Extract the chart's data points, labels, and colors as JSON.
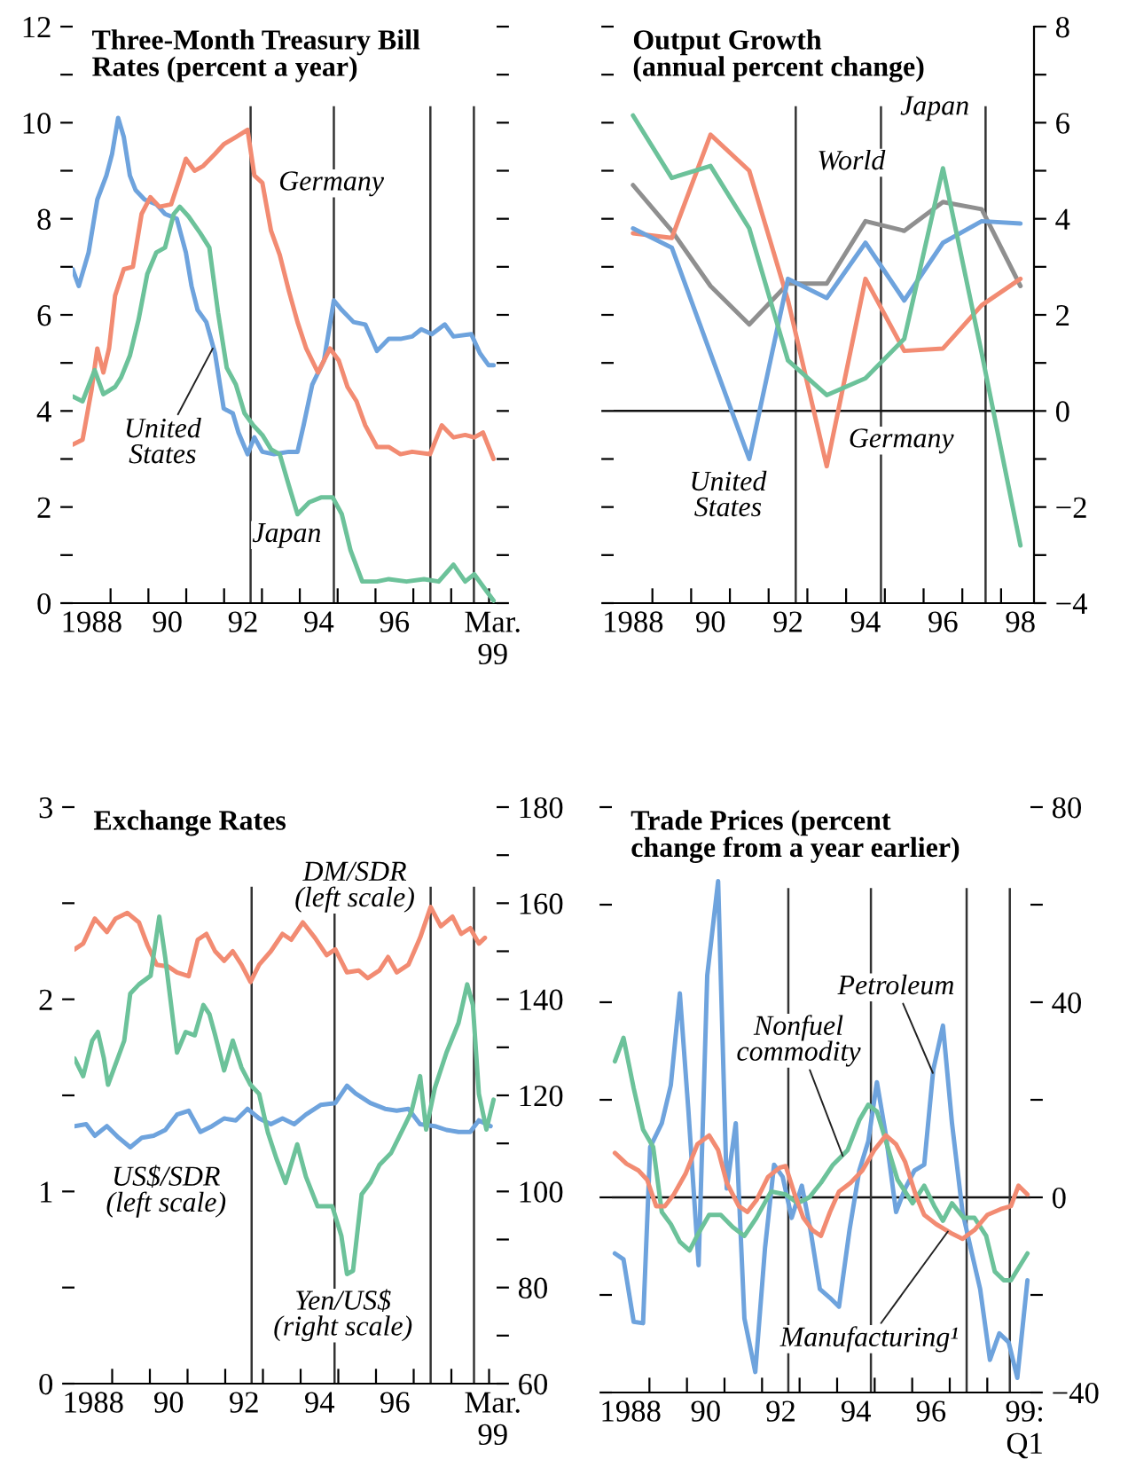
{
  "chart_data": [
    {
      "type": "line",
      "title": "Three-Month Treasury Bill\nRates (percent a year)",
      "xlim": [
        1987.5,
        1998.7
      ],
      "xticks": [
        1988,
        {
          "value": 1988.5,
          "label": null
        },
        {
          "value": 1989.5,
          "label": null
        },
        {
          "value": 1990,
          "label": "90"
        },
        {
          "value": 1990.5,
          "label": null
        },
        {
          "value": 1991.5,
          "label": null
        },
        {
          "value": 1992,
          "label": "92"
        },
        {
          "value": 1992.5,
          "label": null
        },
        {
          "value": 1993.5,
          "label": null
        },
        {
          "value": 1994,
          "label": "94"
        },
        {
          "value": 1994.5,
          "label": null
        },
        {
          "value": 1995.5,
          "label": null
        },
        {
          "value": 1996,
          "label": "96"
        },
        {
          "value": 1996.5,
          "label": null
        },
        {
          "value": 1997.5,
          "label": null
        },
        {
          "value": 1998.5,
          "label": null
        },
        {
          "value": 1998.6,
          "label": "Mar.\n99"
        }
      ],
      "ylim": [
        0,
        12
      ],
      "yticks": [
        0,
        {
          "value": 1,
          "label": null
        },
        2,
        {
          "value": 3,
          "label": null
        },
        4,
        {
          "value": 5,
          "label": null
        },
        6,
        {
          "value": 7,
          "label": null
        },
        8,
        {
          "value": 9,
          "label": null
        },
        10,
        {
          "value": 11,
          "label": null
        },
        12
      ],
      "series": [
        {
          "color": "#6ea3dd",
          "x": [
            1987.5,
            1987.66,
            1987.92,
            1988.15,
            1988.39,
            1988.54,
            1988.7,
            1988.85,
            1989.01,
            1989.16,
            1989.4,
            1989.71,
            1989.94,
            1990.25,
            1990.49,
            1990.64,
            1990.8,
            1991.03,
            1991.26,
            1991.49,
            1991.73,
            1991.88,
            1992.12,
            1992.3,
            1992.51,
            1992.82,
            1993.21,
            1993.44,
            1993.6,
            1993.83,
            1994.14,
            1994.4,
            1994.61,
            1994.92,
            1995.23,
            1995.54,
            1995.85,
            1996.16,
            1996.47,
            1996.71,
            1996.99,
            1997.33,
            1997.56,
            1998.03,
            1998.26,
            1998.49,
            1998.62
          ],
          "values": [
            6.95,
            6.6,
            7.3,
            8.4,
            8.9,
            9.35,
            10.1,
            9.7,
            8.9,
            8.6,
            8.4,
            8.3,
            8.1,
            8.0,
            7.3,
            6.6,
            6.1,
            5.85,
            5.2,
            4.05,
            3.95,
            3.55,
            3.1,
            3.45,
            3.15,
            3.1,
            3.15,
            3.15,
            3.7,
            4.55,
            5.05,
            6.3,
            6.1,
            5.85,
            5.8,
            5.25,
            5.5,
            5.5,
            5.55,
            5.7,
            5.6,
            5.8,
            5.55,
            5.6,
            5.2,
            4.95,
            4.95
          ]
        },
        {
          "color": "#f28b72",
          "x": [
            1987.5,
            1987.76,
            1988.0,
            1988.15,
            1988.31,
            1988.46,
            1988.62,
            1988.85,
            1989.09,
            1989.32,
            1989.55,
            1989.79,
            1990.1,
            1990.33,
            1990.49,
            1990.72,
            1990.95,
            1991.26,
            1991.49,
            1991.81,
            1992.12,
            1992.3,
            1992.51,
            1992.74,
            1992.97,
            1993.21,
            1993.44,
            1993.67,
            1993.98,
            1994.3,
            1994.53,
            1994.76,
            1995.0,
            1995.23,
            1995.54,
            1995.85,
            1996.16,
            1996.47,
            1996.94,
            1997.25,
            1997.56,
            1997.87,
            1998.11,
            1998.34,
            1998.62
          ],
          "values": [
            3.3,
            3.4,
            4.45,
            5.3,
            4.8,
            5.3,
            6.4,
            6.95,
            7.0,
            8.1,
            8.45,
            8.25,
            8.3,
            8.85,
            9.25,
            9.0,
            9.1,
            9.35,
            9.55,
            9.7,
            9.85,
            8.9,
            8.75,
            7.75,
            7.25,
            6.5,
            5.85,
            5.3,
            4.8,
            5.3,
            5.05,
            4.5,
            4.2,
            3.7,
            3.25,
            3.25,
            3.1,
            3.15,
            3.1,
            3.7,
            3.45,
            3.5,
            3.45,
            3.55,
            3.0
          ]
        },
        {
          "color": "#6cc29a",
          "x": [
            1987.5,
            1987.76,
            1988.08,
            1988.31,
            1988.62,
            1988.78,
            1989.01,
            1989.24,
            1989.47,
            1989.71,
            1989.94,
            1990.17,
            1990.33,
            1990.56,
            1990.87,
            1991.11,
            1991.34,
            1991.57,
            1991.81,
            1992.04,
            1992.27,
            1992.51,
            1992.74,
            1992.97,
            1993.21,
            1993.44,
            1993.75,
            1994.06,
            1994.37,
            1994.61,
            1994.84,
            1995.15,
            1995.54,
            1995.85,
            1996.32,
            1996.78,
            1997.17,
            1997.56,
            1997.87,
            1998.11,
            1998.34,
            1998.62
          ],
          "values": [
            4.3,
            4.2,
            4.85,
            4.35,
            4.5,
            4.7,
            5.15,
            5.9,
            6.85,
            7.3,
            7.4,
            8.1,
            8.25,
            8.05,
            7.7,
            7.4,
            6.05,
            4.9,
            4.55,
            3.95,
            3.7,
            3.5,
            3.2,
            3.1,
            2.45,
            1.85,
            2.1,
            2.2,
            2.2,
            1.85,
            1.1,
            0.45,
            0.45,
            0.5,
            0.45,
            0.5,
            0.45,
            0.8,
            0.45,
            0.6,
            0.35,
            0.05
          ]
        }
      ],
      "ref_lines": [
        {
          "axis": "x",
          "value": 1992.2
        },
        {
          "axis": "x",
          "value": 1994.4
        },
        {
          "axis": "x",
          "value": 1996.95
        },
        {
          "axis": "x",
          "value": 1998.1
        }
      ],
      "annotations": [
        "Germany",
        "Japan",
        {
          "text": "United\nStates",
          "x": 1991.2,
          "y": 5.3
        }
      ]
    },
    {
      "type": "line",
      "title": "Output Growth\n(annual percent change)",
      "xlim": [
        1987.5,
        1998.35
      ],
      "xticks": [
        1988,
        {
          "value": 1988.5,
          "label": null
        },
        {
          "value": 1989.5,
          "label": null
        },
        {
          "value": 1990,
          "label": "90"
        },
        {
          "value": 1990.5,
          "label": null
        },
        {
          "value": 1991.5,
          "label": null
        },
        {
          "value": 1992,
          "label": "92"
        },
        {
          "value": 1992.5,
          "label": null
        },
        {
          "value": 1993.5,
          "label": null
        },
        {
          "value": 1994,
          "label": "94"
        },
        {
          "value": 1994.5,
          "label": null
        },
        {
          "value": 1995.5,
          "label": null
        },
        {
          "value": 1996,
          "label": "96"
        },
        {
          "value": 1996.5,
          "label": null
        },
        {
          "value": 1997.5,
          "label": null
        },
        {
          "value": 1998,
          "label": "98"
        }
      ],
      "y2lim": [
        -4,
        8
      ],
      "y2ticks": [
        {
          "value": -4,
          "label": "−4"
        },
        {
          "value": -3,
          "label": null
        },
        {
          "value": -2,
          "label": "−2"
        },
        {
          "value": -1,
          "label": null
        },
        0,
        {
          "value": 1,
          "label": null
        },
        2,
        {
          "value": 3,
          "label": null
        },
        4,
        {
          "value": 5,
          "label": null
        },
        6,
        {
          "value": 7,
          "label": null
        },
        8
      ],
      "series": [
        {
          "axis": "y2",
          "color": "#8f8f8f",
          "x": [
            1988,
            1989,
            1990,
            1991,
            1992,
            1993,
            1994,
            1995,
            1996,
            1997,
            1998
          ],
          "values": [
            4.7,
            3.75,
            2.6,
            1.8,
            2.65,
            2.65,
            3.95,
            3.75,
            4.35,
            4.2,
            2.6
          ]
        },
        {
          "axis": "y2",
          "color": "#f28b72",
          "x": [
            1988,
            1989,
            1990,
            1991,
            1992,
            1993,
            1994,
            1995,
            1996,
            1997,
            1998
          ],
          "values": [
            3.7,
            3.6,
            5.75,
            5.0,
            2.3,
            -1.15,
            2.75,
            1.25,
            1.3,
            2.2,
            2.75
          ]
        },
        {
          "axis": "y2",
          "color": "#6ea3dd",
          "x": [
            1988,
            1989,
            1990,
            1991,
            1992,
            1993,
            1994,
            1995,
            1996,
            1997,
            1998
          ],
          "values": [
            3.8,
            3.4,
            1.2,
            -1.0,
            2.75,
            2.35,
            3.5,
            2.3,
            3.5,
            3.95,
            3.9
          ]
        },
        {
          "axis": "y2",
          "color": "#6cc29a",
          "x": [
            1988,
            1989,
            1990,
            1991,
            1992,
            1993,
            1994,
            1995,
            1996,
            1997,
            1998
          ],
          "values": [
            6.15,
            4.85,
            5.1,
            3.8,
            1.05,
            0.33,
            0.68,
            1.5,
            5.05,
            1.2,
            -2.8
          ]
        }
      ],
      "ref_lines": [
        {
          "axis": "y2",
          "value": 0
        },
        {
          "axis": "x",
          "value": 1992.2
        },
        {
          "axis": "x",
          "value": 1994.4
        },
        {
          "axis": "x",
          "value": 1997.1
        }
      ],
      "annotations": [
        "Japan",
        "World",
        "Germany",
        "United\nStates"
      ]
    },
    {
      "type": "line",
      "title": "Exchange Rates",
      "xlim": [
        1987.5,
        1998.7
      ],
      "xticks": [
        1988,
        {
          "value": 1988.5,
          "label": null
        },
        {
          "value": 1989.5,
          "label": null
        },
        {
          "value": 1990,
          "label": "90"
        },
        {
          "value": 1990.5,
          "label": null
        },
        {
          "value": 1991.5,
          "label": null
        },
        {
          "value": 1992,
          "label": "92"
        },
        {
          "value": 1992.5,
          "label": null
        },
        {
          "value": 1993.5,
          "label": null
        },
        {
          "value": 1994,
          "label": "94"
        },
        {
          "value": 1994.5,
          "label": null
        },
        {
          "value": 1995.5,
          "label": null
        },
        {
          "value": 1996,
          "label": "96"
        },
        {
          "value": 1996.5,
          "label": null
        },
        {
          "value": 1997.5,
          "label": null
        },
        {
          "value": 1998.5,
          "label": null
        },
        {
          "value": 1998.6,
          "label": "Mar.\n99"
        }
      ],
      "ylim": [
        0,
        3
      ],
      "yticks": [
        0,
        {
          "value": 0.5,
          "label": null
        },
        1,
        {
          "value": 1.5,
          "label": null
        },
        2,
        {
          "value": 2.5,
          "label": null
        },
        3
      ],
      "y2lim": [
        60,
        180
      ],
      "y2ticks": [
        60,
        {
          "value": 70,
          "label": null
        },
        80,
        {
          "value": 90,
          "label": null
        },
        100,
        {
          "value": 110,
          "label": null
        },
        120,
        {
          "value": 130,
          "label": null
        },
        140,
        {
          "value": 150,
          "label": null
        },
        160,
        {
          "value": 170,
          "label": null
        },
        180
      ],
      "series": [
        {
          "color": "#f28b72",
          "x": [
            1987.5,
            1987.73,
            1988.04,
            1988.36,
            1988.59,
            1988.9,
            1989.21,
            1989.44,
            1989.68,
            1989.99,
            1990.22,
            1990.53,
            1990.77,
            1991.0,
            1991.23,
            1991.47,
            1991.7,
            1991.93,
            1992.17,
            1992.4,
            1992.71,
            1993.02,
            1993.25,
            1993.56,
            1993.88,
            1994.19,
            1994.42,
            1994.73,
            1995.04,
            1995.28,
            1995.59,
            1995.82,
            1996.05,
            1996.36,
            1996.67,
            1996.95,
            1997.22,
            1997.53,
            1997.76,
            1998.0,
            1998.23,
            1998.39
          ],
          "values": [
            2.26,
            2.29,
            2.42,
            2.35,
            2.42,
            2.45,
            2.4,
            2.28,
            2.18,
            2.17,
            2.14,
            2.12,
            2.31,
            2.34,
            2.25,
            2.2,
            2.25,
            2.18,
            2.09,
            2.18,
            2.25,
            2.34,
            2.31,
            2.4,
            2.32,
            2.23,
            2.26,
            2.14,
            2.15,
            2.11,
            2.15,
            2.22,
            2.14,
            2.18,
            2.32,
            2.48,
            2.38,
            2.43,
            2.34,
            2.37,
            2.29,
            2.32
          ]
        },
        {
          "color": "#6ea3dd",
          "x": [
            1987.5,
            1987.81,
            1988.04,
            1988.36,
            1988.67,
            1988.98,
            1989.29,
            1989.6,
            1989.91,
            1990.22,
            1990.53,
            1990.84,
            1991.15,
            1991.47,
            1991.78,
            1992.09,
            1992.4,
            1992.71,
            1993.02,
            1993.33,
            1993.64,
            1994.03,
            1994.42,
            1994.73,
            1994.96,
            1995.35,
            1995.74,
            1996.05,
            1996.36,
            1996.67,
            1997.06,
            1997.37,
            1997.69,
            1998.0,
            1998.23,
            1998.54
          ],
          "values": [
            1.34,
            1.35,
            1.29,
            1.34,
            1.28,
            1.23,
            1.28,
            1.29,
            1.32,
            1.4,
            1.42,
            1.31,
            1.34,
            1.38,
            1.37,
            1.43,
            1.38,
            1.35,
            1.38,
            1.35,
            1.4,
            1.45,
            1.46,
            1.55,
            1.51,
            1.46,
            1.43,
            1.42,
            1.43,
            1.35,
            1.34,
            1.32,
            1.31,
            1.31,
            1.37,
            1.34
          ]
        },
        {
          "axis": "y2",
          "color": "#6cc29a",
          "x": [
            1987.5,
            1987.73,
            1987.97,
            1988.12,
            1988.28,
            1988.39,
            1988.59,
            1988.82,
            1988.98,
            1989.21,
            1989.52,
            1989.75,
            1989.91,
            1990.22,
            1990.45,
            1990.69,
            1990.92,
            1991.08,
            1991.23,
            1991.47,
            1991.7,
            1991.93,
            1992.17,
            1992.4,
            1992.63,
            1992.86,
            1993.1,
            1993.41,
            1993.64,
            1993.95,
            1994.34,
            1994.58,
            1994.73,
            1994.89,
            1995.12,
            1995.35,
            1995.59,
            1995.9,
            1996.21,
            1996.44,
            1996.67,
            1996.83,
            1997.06,
            1997.37,
            1997.69,
            1997.92,
            1998.07,
            1998.23,
            1998.43,
            1998.62
          ],
          "values": [
            127.7,
            124,
            131.4,
            133.2,
            127.7,
            122.2,
            126.5,
            131.4,
            141.2,
            143.1,
            144.9,
            157.2,
            148.6,
            128.9,
            133.2,
            132.5,
            138.8,
            136.9,
            132.6,
            125.2,
            131.4,
            125.8,
            122.2,
            120.3,
            112.3,
            106.8,
            101.8,
            109.8,
            103.1,
            96.9,
            96.9,
            90.8,
            82.8,
            83.5,
            99.4,
            101.8,
            105.5,
            108,
            112.9,
            116.6,
            124,
            112.9,
            121.5,
            128.9,
            135.1,
            143.1,
            138.8,
            120.3,
            112.9,
            119.1
          ]
        }
      ],
      "ref_lines": [
        {
          "axis": "x",
          "value": 1992.2
        },
        {
          "axis": "x",
          "value": 1994.4
        },
        {
          "axis": "x",
          "value": 1996.95
        },
        {
          "axis": "x",
          "value": 1998.1
        }
      ],
      "annotations": [
        "DM/SDR\n(left scale)",
        "US$/SDR\n(left scale)",
        "Yen/US$\n(right scale)"
      ]
    },
    {
      "type": "line",
      "title": "Trade Prices (percent\nchange from a year earlier)",
      "xlim": [
        1987.5,
        1998.65
      ],
      "xticks": [
        1988,
        {
          "value": 1988.5,
          "label": null
        },
        {
          "value": 1989.5,
          "label": null
        },
        {
          "value": 1990,
          "label": "90"
        },
        {
          "value": 1990.5,
          "label": null
        },
        {
          "value": 1991.5,
          "label": null
        },
        {
          "value": 1992,
          "label": "92"
        },
        {
          "value": 1992.5,
          "label": null
        },
        {
          "value": 1993.5,
          "label": null
        },
        {
          "value": 1994,
          "label": "94"
        },
        {
          "value": 1994.5,
          "label": null
        },
        {
          "value": 1995.5,
          "label": null
        },
        {
          "value": 1996,
          "label": "96"
        },
        {
          "value": 1996.5,
          "label": null
        },
        {
          "value": 1997.5,
          "label": null
        },
        {
          "value": 1998.5,
          "label": "99:\nQ1"
        }
      ],
      "ylim": [
        -40,
        80
      ],
      "yticks": [
        {
          "value": -40,
          "label": "−40"
        },
        {
          "value": -20,
          "label": null
        },
        0,
        {
          "value": 20,
          "label": null
        },
        40,
        {
          "value": 60,
          "label": null
        },
        80
      ],
      "series": [
        {
          "color": "#6ea3dd",
          "x": [
            1987.58,
            1987.81,
            1988.08,
            1988.33,
            1988.52,
            1988.83,
            1989.07,
            1989.31,
            1989.54,
            1989.81,
            1990.04,
            1990.33,
            1990.56,
            1990.8,
            1991.03,
            1991.32,
            1991.58,
            1991.82,
            1992.05,
            1992.29,
            1992.56,
            1992.79,
            1993.04,
            1993.31,
            1993.55,
            1993.83,
            1994.09,
            1994.33,
            1994.56,
            1994.8,
            1995.07,
            1995.31,
            1995.56,
            1995.82,
            1996.06,
            1996.32,
            1996.56,
            1996.84,
            1997.09,
            1997.31,
            1997.57,
            1997.82,
            1998.07,
            1998.3,
            1998.57
          ],
          "values": [
            -11.5,
            -12.7,
            -25.5,
            -25.8,
            10.3,
            15.2,
            23,
            41.8,
            17.6,
            -13.9,
            45.5,
            64.8,
            1.8,
            15.2,
            -24.8,
            -35.8,
            -10.3,
            6.7,
            4.2,
            -4.2,
            2.4,
            -6.7,
            -18.8,
            -20.6,
            -22.4,
            -6.7,
            5.5,
            11.5,
            23.6,
            12.7,
            -3,
            1.8,
            5.5,
            6.7,
            26.1,
            35.2,
            15.2,
            -3,
            -11.5,
            -18.8,
            -33.3,
            -27.9,
            -29.7,
            -37,
            -17
          ]
        },
        {
          "color": "#6cc29a",
          "x": [
            1987.58,
            1987.81,
            1988.08,
            1988.33,
            1988.6,
            1988.83,
            1989.07,
            1989.31,
            1989.57,
            1989.81,
            1990.09,
            1990.4,
            1990.72,
            1991.03,
            1991.35,
            1991.74,
            1992.13,
            1992.45,
            1992.76,
            1993.07,
            1993.39,
            1993.78,
            1994.09,
            1994.33,
            1994.56,
            1994.8,
            1995.11,
            1995.51,
            1995.82,
            1996.09,
            1996.32,
            1996.56,
            1996.87,
            1997.16,
            1997.47,
            1997.7,
            1997.94,
            1998.13,
            1998.33,
            1998.57
          ],
          "values": [
            27.9,
            32.7,
            22.4,
            13.9,
            10.3,
            -3,
            -5.5,
            -9.1,
            -10.9,
            -7.3,
            -3.6,
            -3.6,
            -6.1,
            -7.9,
            -4.2,
            1.2,
            0.6,
            -1.2,
            0,
            3,
            6.7,
            9.7,
            15.8,
            19,
            17.6,
            11.5,
            3.6,
            -1.2,
            2.4,
            -1.8,
            -4.8,
            -1.2,
            -4.2,
            -4.2,
            -7.9,
            -15.2,
            -17,
            -17,
            -14.5,
            -11.5
          ]
        },
        {
          "color": "#f28b72",
          "x": [
            1987.58,
            1987.89,
            1988.21,
            1988.44,
            1988.68,
            1988.91,
            1989.15,
            1989.46,
            1989.78,
            1990.09,
            1990.33,
            1990.56,
            1990.88,
            1991.11,
            1991.35,
            1991.66,
            1991.97,
            1992.13,
            1992.37,
            1992.6,
            1992.84,
            1993.07,
            1993.31,
            1993.55,
            1993.86,
            1994.17,
            1994.49,
            1994.8,
            1995.07,
            1995.31,
            1995.59,
            1995.82,
            1996.14,
            1996.53,
            1996.84,
            1997.16,
            1997.5,
            1997.86,
            1998.13,
            1998.33,
            1998.57
          ],
          "values": [
            9.1,
            6.9,
            5.5,
            3.6,
            -1.8,
            -1.8,
            0.6,
            4.8,
            10.9,
            12.7,
            9.7,
            3,
            -1.8,
            -3,
            -0.6,
            4.2,
            6.1,
            6.4,
            0.6,
            -4.2,
            -6.7,
            -7.9,
            -3,
            1.2,
            3,
            5.5,
            9.7,
            12.7,
            10.9,
            7.3,
            0.6,
            -3.6,
            -5.5,
            -7.3,
            -8.5,
            -6.7,
            -3.6,
            -2.4,
            -1.8,
            2.4,
            0.6
          ]
        }
      ],
      "ref_lines": [
        {
          "axis": "y",
          "value": 0
        },
        {
          "axis": "x",
          "value": 1992.2
        },
        {
          "axis": "x",
          "value": 1994.4
        },
        {
          "axis": "x",
          "value": 1996.95
        },
        {
          "axis": "x",
          "value": 1998.1
        }
      ],
      "annotations": [
        {
          "text": "Petroleum",
          "x": 1996.05,
          "y": 25.5
        },
        {
          "text": "Nonfuel\ncommodity",
          "x": 1993.65,
          "y": 8.5
        },
        {
          "text": "Manufacturing¹",
          "x": 1996.45,
          "y": -7
        }
      ]
    }
  ]
}
